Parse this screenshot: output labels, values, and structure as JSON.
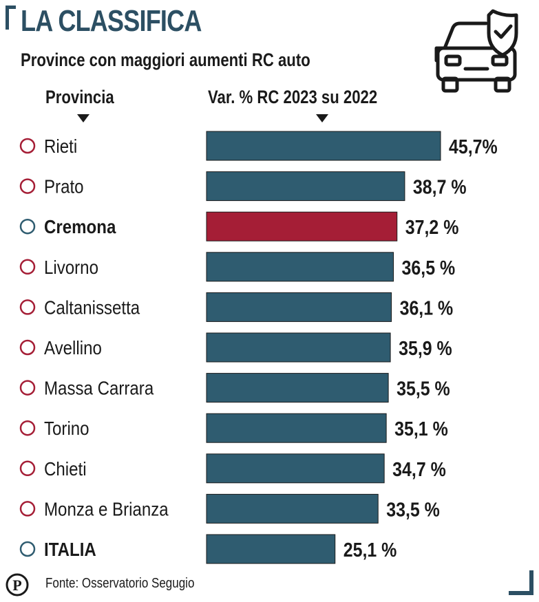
{
  "header": {
    "title": "LA CLASSIFICA",
    "subtitle": "Province con maggiori aumenti RC auto",
    "column_province": "Provincia",
    "column_value": "Var. % RC 2023 su 2022"
  },
  "icons": {
    "main": "car-shield-check-icon",
    "logo": "p-logo-icon"
  },
  "colors": {
    "bar": "#2f5c70",
    "highlight": "#a51e36",
    "ring_default": "#a51e36",
    "ring_highlight": "#2f5c70",
    "accent": "#2c4f63"
  },
  "chart_data": {
    "type": "bar",
    "orientation": "horizontal",
    "categories": [
      "Rieti",
      "Prato",
      "Cremona",
      "Livorno",
      "Caltanissetta",
      "Avellino",
      "Massa Carrara",
      "Torino",
      "Chieti",
      "Monza e Brianza",
      "ITALIA"
    ],
    "values": [
      45.7,
      38.7,
      37.2,
      36.5,
      36.1,
      35.9,
      35.5,
      35.1,
      34.7,
      33.5,
      25.1
    ],
    "value_labels": [
      "45,7%",
      "38,7 %",
      "37,2 %",
      "36,5 %",
      "36,1 %",
      "35,9 %",
      "35,5 %",
      "35,1 %",
      "34,7 %",
      "33,5 %",
      "25,1 %"
    ],
    "highlighted": [
      "Cremona",
      "ITALIA"
    ],
    "highlight_bar": "Cremona",
    "xlim": [
      0,
      45.7
    ]
  },
  "footer": {
    "source": "Fonte: Osservatorio Segugio"
  }
}
